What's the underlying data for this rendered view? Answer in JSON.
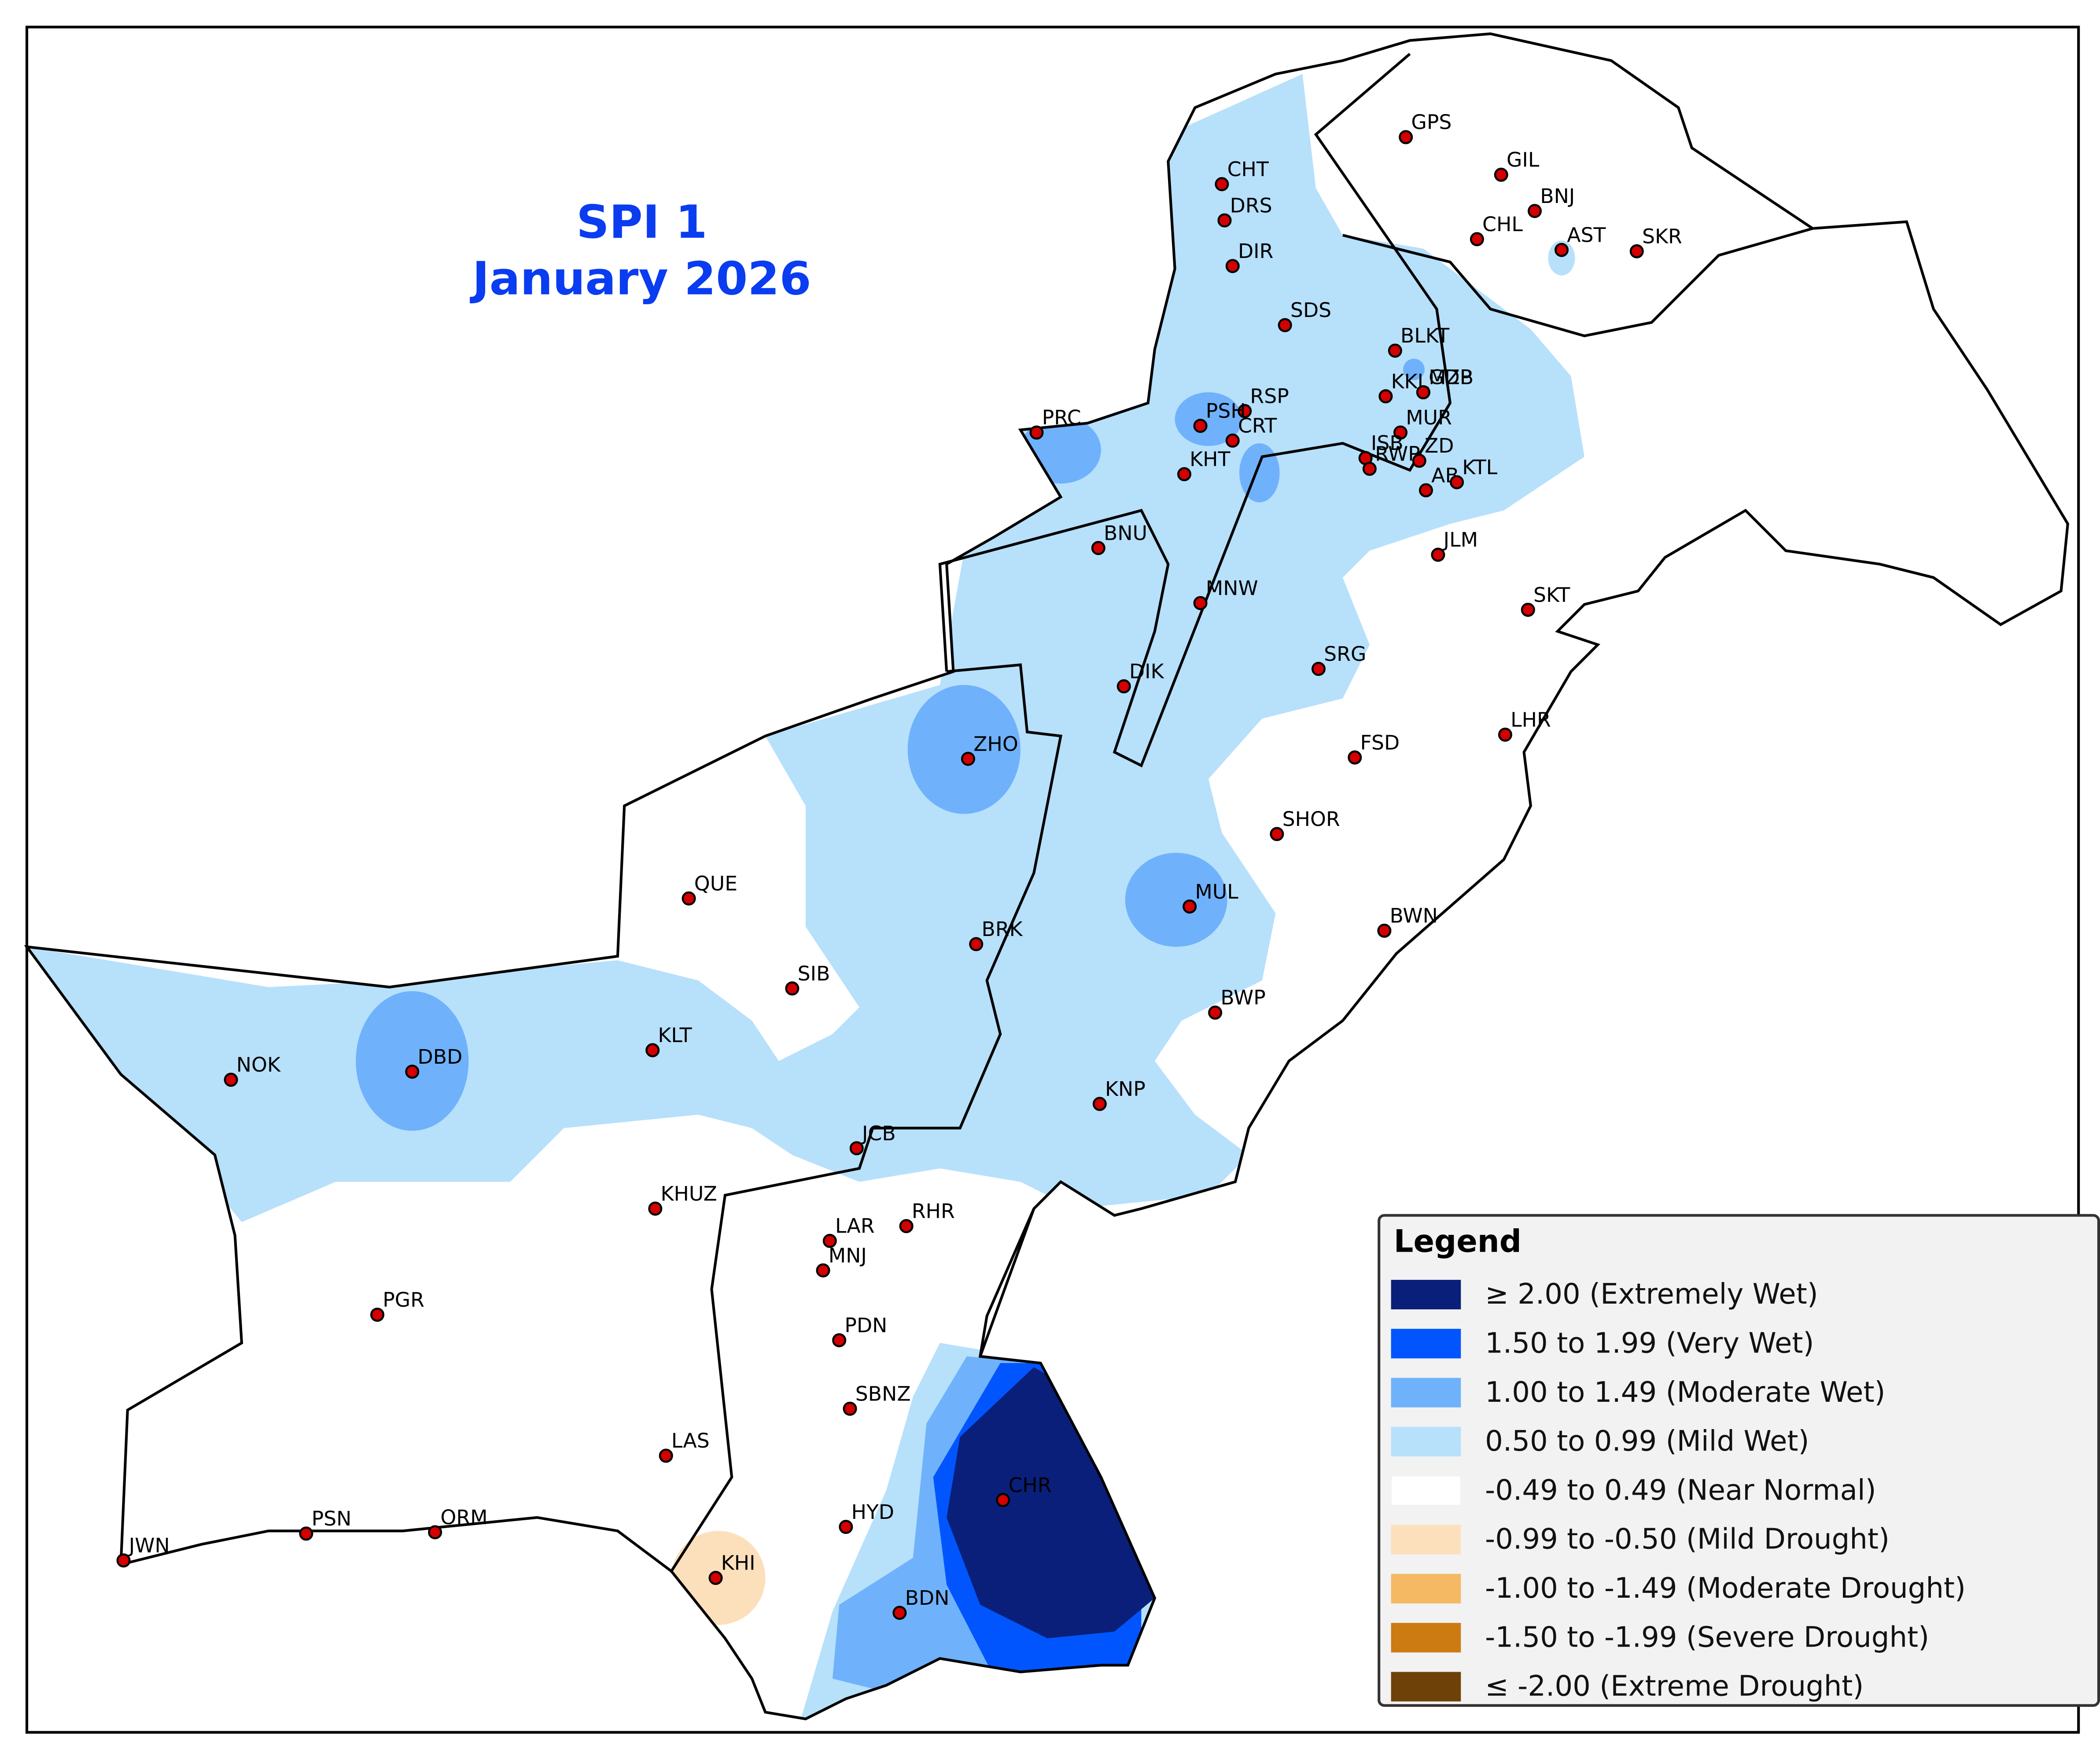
{
  "title": [
    "SPI 1",
    "January 2026"
  ],
  "legend": {
    "title": "Legend",
    "entries": [
      {
        "label": "≥ 2.00 (Extremely Wet)",
        "color": "#0a1f7a"
      },
      {
        "label": "1.50 to 1.99 (Very Wet)",
        "color": "#0055ff"
      },
      {
        "label": "1.00 to 1.49 (Moderate Wet)",
        "color": "#6fb2fb"
      },
      {
        "label": "0.50 to 0.99 (Mild Wet)",
        "color": "#b7e0fb"
      },
      {
        "label": "-0.49 to 0.49 (Near Normal)",
        "color": "#ffffff"
      },
      {
        "label": "-0.99 to -0.50 (Mild Drought)",
        "color": "#fce0bc"
      },
      {
        "label": "-1.00 to -1.49 (Moderate Drought)",
        "color": "#f5b964"
      },
      {
        "label": "-1.50 to -1.99 (Severe Drought)",
        "color": "#cc7a12"
      },
      {
        "label": "≤ -2.00 (Extreme Drought)",
        "color": "#6e4109"
      }
    ]
  },
  "stations": [
    "GPS",
    "GIL",
    "BNJ",
    "CHL",
    "AST",
    "SKR",
    "CHT",
    "DRS",
    "DIR",
    "SDS",
    "BLKT",
    "MZB",
    "KKL",
    "GDP",
    "RSP",
    "PSH",
    "MUR",
    "ISB",
    "ZD",
    "PRC",
    "CRT",
    "KHT",
    "RWP",
    "AB",
    "KTL",
    "BNU",
    "JLM",
    "MNW",
    "SKT",
    "SRG",
    "DIK",
    "LHR",
    "ZHO",
    "FSD",
    "SHOR",
    "QUE",
    "MUL",
    "BWN",
    "BRK",
    "SIB",
    "BWP",
    "KLT",
    "NOK",
    "DBD",
    "KNP",
    "JCB",
    "KHUZ",
    "LAR",
    "RHR",
    "MNJ",
    "PGR",
    "PDN",
    "SBNZ",
    "LAS",
    "CHR",
    "HYD",
    "PSN",
    "ORM",
    "JWN",
    "KHI",
    "BDN"
  ]
}
